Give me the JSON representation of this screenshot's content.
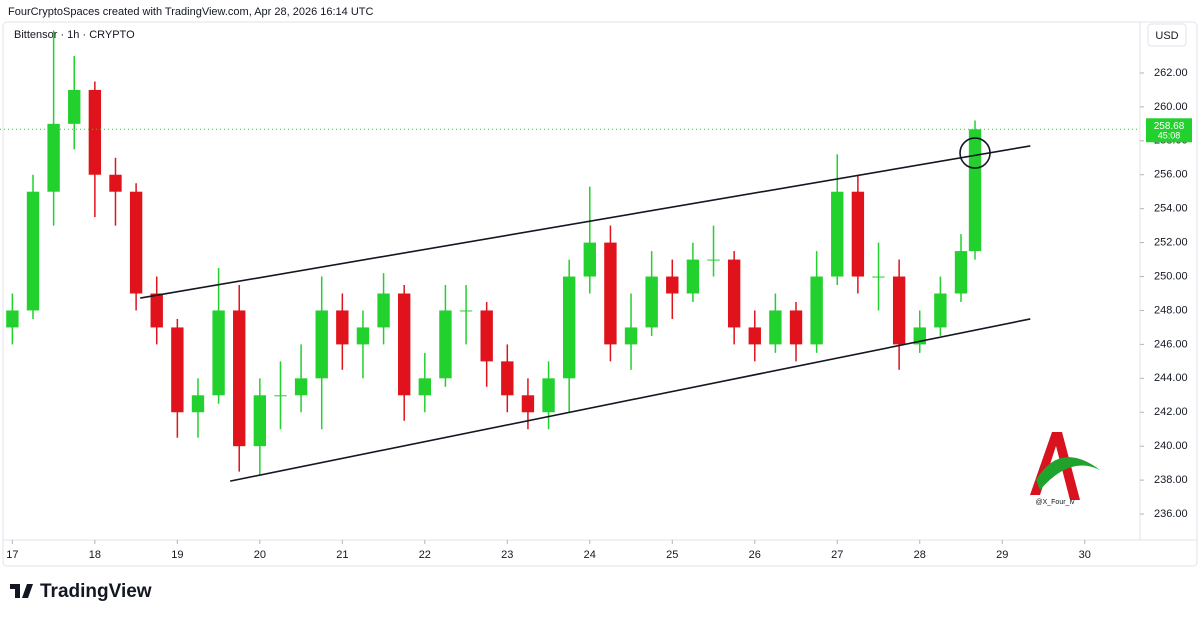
{
  "header": {
    "credit": "FourCryptoSpaces created with TradingView.com, Apr 28, 2026 16:14 UTC",
    "logo": "TradingView"
  },
  "chart_data": {
    "type": "candlestick",
    "title": "Bittensor · 1h · CRYPTO",
    "currency": "USD",
    "watermark": "@X_Four_iv",
    "up_color": "#22d12e",
    "down_color": "#e0121b",
    "x": [
      17.0,
      17.25,
      17.5,
      17.75,
      18.0,
      18.25,
      18.5,
      18.75,
      19.0,
      19.25,
      19.5,
      19.75,
      20.0,
      20.25,
      20.5,
      20.75,
      21.0,
      21.25,
      21.5,
      21.75,
      22.0,
      22.25,
      22.5,
      22.75,
      23.0,
      23.25,
      23.5,
      23.75,
      24.0,
      24.25,
      24.5,
      24.75,
      25.0,
      25.25,
      25.5,
      25.75,
      26.0,
      26.25,
      26.5,
      26.75,
      27.0,
      27.25,
      27.5,
      27.75,
      28.0,
      28.25,
      28.5,
      28.67
    ],
    "open": [
      247,
      248,
      255,
      259,
      261,
      256,
      255,
      249,
      247,
      242,
      243,
      248,
      240,
      243,
      243,
      244,
      248,
      246,
      247,
      249,
      243,
      244,
      248,
      248,
      245,
      243,
      242,
      244,
      250,
      252,
      246,
      247,
      250,
      249,
      251,
      251,
      247,
      246,
      248,
      246,
      250,
      255,
      250,
      250,
      246,
      247,
      249,
      251.5
    ],
    "high": [
      249,
      256,
      264.5,
      263,
      261.5,
      257,
      255.5,
      250,
      247.5,
      244,
      250.5,
      249.5,
      244,
      245,
      246,
      250,
      249,
      248,
      250.2,
      249.5,
      245.5,
      249.5,
      249.5,
      248.5,
      246,
      244,
      245,
      251,
      255.3,
      253,
      249,
      251.5,
      251,
      252,
      253,
      251.5,
      248,
      249,
      248.5,
      251.5,
      257.2,
      256,
      252,
      251,
      248,
      250,
      252.5,
      259.2
    ],
    "low": [
      246,
      247.5,
      253,
      257.5,
      253.5,
      253,
      248,
      246,
      240.5,
      240.5,
      242.5,
      238.5,
      238.3,
      241,
      242,
      241,
      244.5,
      244,
      246,
      241.5,
      242,
      243.5,
      246,
      243.5,
      242,
      241,
      241,
      242,
      249,
      245,
      244.5,
      246.5,
      247.5,
      248.5,
      250,
      246,
      245,
      245.5,
      245,
      245.5,
      249.5,
      249,
      248,
      244.5,
      245.5,
      246.5,
      248.5,
      251
    ],
    "close": [
      248,
      255,
      259,
      261,
      256,
      255,
      249,
      247,
      242,
      243,
      248,
      240,
      243,
      243,
      244,
      248,
      246,
      247,
      249,
      243,
      244,
      248,
      248,
      245,
      243,
      242,
      244,
      250,
      252,
      246,
      247,
      250,
      249,
      251,
      251,
      247,
      246,
      248,
      246,
      250,
      255,
      250,
      250,
      246,
      247,
      249,
      251.5,
      258.68
    ],
    "countdown": "45:08",
    "trendlines": [
      {
        "x": [
          18.55,
          29.34
        ],
        "y": [
          248.73,
          257.7
        ]
      },
      {
        "x": [
          19.64,
          29.34
        ],
        "y": [
          237.94,
          247.5
        ]
      }
    ],
    "marker": {
      "x": 28.67,
      "y": 257.28
    },
    "xlim": [
      16.85,
      30.67
    ],
    "ylim": [
      234.47,
      264.65
    ],
    "xticks": [
      17,
      18,
      19,
      20,
      21,
      22,
      23,
      24,
      25,
      26,
      27,
      28,
      29,
      30
    ],
    "yticks": [
      {
        "value": 236,
        "label": "236.00"
      },
      {
        "value": 238,
        "label": "238.00"
      },
      {
        "value": 240,
        "label": "240.00"
      },
      {
        "value": 242,
        "label": "242.00"
      },
      {
        "value": 244,
        "label": "244.00"
      },
      {
        "value": 246,
        "label": "246.00"
      },
      {
        "value": 248,
        "label": "248.00"
      },
      {
        "value": 250,
        "label": "250.00"
      },
      {
        "value": 252,
        "label": "252.00"
      },
      {
        "value": 254,
        "label": "254.00"
      },
      {
        "value": 256,
        "label": "256.00"
      },
      {
        "value": 258,
        "label": "258.00"
      },
      {
        "value": 260,
        "label": "260.00"
      },
      {
        "value": 262,
        "label": "262.00"
      }
    ]
  }
}
